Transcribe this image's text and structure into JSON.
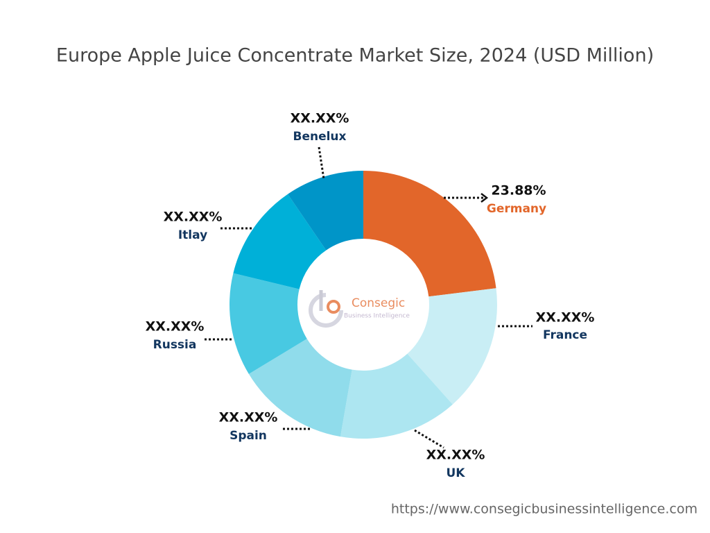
{
  "chart_data": {
    "type": "donut",
    "title": "Europe Apple Juice Concentrate Market Size, 2024 (USD Million)",
    "categories": [
      "Germany",
      "France",
      "UK",
      "Spain",
      "Russia",
      "Itlay",
      "Benelux"
    ],
    "values": [
      23.88,
      15.9,
      14.9,
      14.1,
      12.9,
      12.1,
      9.9
    ],
    "value_labels": [
      "23.88%",
      "XX.XX%",
      "XX.XX%",
      "XX.XX%",
      "XX.XX%",
      "XX.XX%",
      "XX.XX%"
    ],
    "colors": [
      "#e2662a",
      "#c9eef5",
      "#ade6f1",
      "#90dceb",
      "#48c9e2",
      "#00b0d8",
      "#0095c8"
    ],
    "label_colors": [
      "#e2662a",
      "#12365f",
      "#12365f",
      "#12365f",
      "#12365f",
      "#12365f",
      "#12365f"
    ]
  },
  "watermark": {
    "name": "Consegic",
    "tagline": "Business Intelligence"
  },
  "footer": {
    "url": "https://www.consegicbusinessintelligence.com"
  }
}
